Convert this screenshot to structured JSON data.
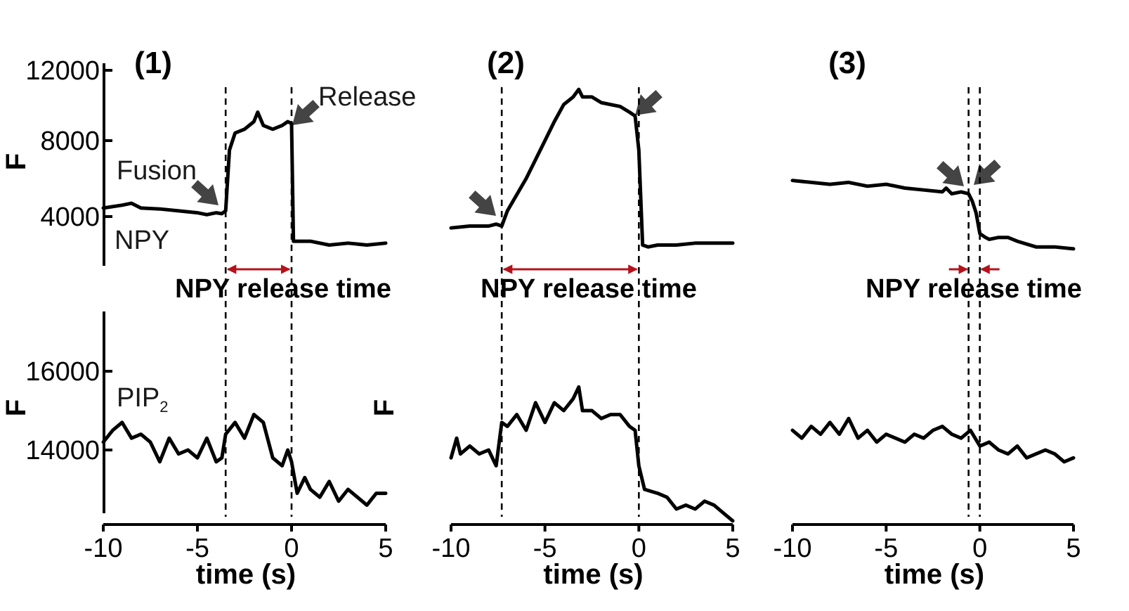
{
  "chart_data": {
    "type": "line",
    "colors": {
      "trace": "#000000",
      "arrow": "#444444",
      "release_marker": "#b5121b"
    },
    "ylabel": "F",
    "xlabel": "time (s)",
    "x_ticks": [
      "-10",
      "-5",
      "0",
      "5"
    ],
    "npy_axis": {
      "ylim": [
        1200,
        12000
      ],
      "ticks": [
        "12000",
        "8000",
        "4000"
      ]
    },
    "pip2_axis": {
      "ylim": [
        11800,
        17600
      ],
      "ticks": [
        "16000",
        "14000"
      ]
    },
    "annotations": {
      "fusion": "Fusion",
      "release": "Release",
      "npy": "NPY",
      "pip2": "PIP",
      "pip2_sub": "2",
      "release_time": "NPY release time"
    },
    "panels": [
      {
        "label": "(1)",
        "xlim": [
          -10,
          5
        ],
        "fusion_time": -3.5,
        "release_time_s": 0,
        "npy": {
          "x": [
            -10,
            -9,
            -8.5,
            -8,
            -7,
            -6,
            -5,
            -4.5,
            -4,
            -3.7,
            -3.5,
            -3.3,
            -3.0,
            -2.5,
            -2.0,
            -1.8,
            -1.5,
            -1.0,
            -0.5,
            -0.2,
            0,
            0.1,
            0.5,
            1,
            2,
            3,
            4,
            5
          ],
          "y": [
            4450,
            4600,
            4700,
            4450,
            4400,
            4300,
            4200,
            4100,
            4200,
            4150,
            4300,
            7500,
            8400,
            8600,
            9000,
            9500,
            8800,
            8600,
            8800,
            9000,
            8900,
            2700,
            2700,
            2700,
            2500,
            2600,
            2500,
            2600
          ]
        },
        "pip2": {
          "x": [
            -10,
            -9.5,
            -9,
            -8.5,
            -8,
            -7.5,
            -7,
            -6.5,
            -6,
            -5.5,
            -5,
            -4.5,
            -4,
            -3.7,
            -3.5,
            -3,
            -2.5,
            -2,
            -1.5,
            -1,
            -0.5,
            -0.2,
            0,
            0.3,
            0.7,
            1,
            1.5,
            2,
            2.5,
            3,
            3.5,
            4,
            4.5,
            5
          ],
          "y": [
            14200,
            14500,
            14700,
            14300,
            14400,
            14200,
            13700,
            14300,
            13900,
            14000,
            13800,
            14300,
            13700,
            13800,
            14400,
            14700,
            14300,
            14900,
            14700,
            13800,
            13600,
            14000,
            13700,
            12900,
            13300,
            13000,
            12800,
            13200,
            12700,
            13000,
            12800,
            12600,
            12900,
            12900
          ]
        }
      },
      {
        "label": "(2)",
        "xlim": [
          -10,
          5
        ],
        "fusion_time": -7.3,
        "release_time_s": 0,
        "npy": {
          "x": [
            -10,
            -9,
            -8,
            -7.6,
            -7.3,
            -7,
            -6,
            -5,
            -4.5,
            -4,
            -3.5,
            -3.2,
            -3,
            -2.5,
            -2,
            -1,
            -0.5,
            -0.2,
            0,
            0.2,
            0.5,
            1,
            2,
            3,
            4,
            5
          ],
          "y": [
            3400,
            3500,
            3500,
            3600,
            3500,
            4300,
            6000,
            8000,
            9000,
            9900,
            10300,
            10700,
            10300,
            10300,
            10000,
            9800,
            9500,
            9300,
            7500,
            2500,
            2400,
            2500,
            2500,
            2600,
            2600,
            2600
          ]
        },
        "pip2": {
          "x": [
            -10,
            -9.7,
            -9.5,
            -9,
            -8.5,
            -8,
            -7.6,
            -7.3,
            -7,
            -6.5,
            -6,
            -5.5,
            -5,
            -4.5,
            -4,
            -3.5,
            -3.2,
            -3,
            -2.5,
            -2,
            -1.5,
            -1,
            -0.5,
            -0.2,
            0,
            0.3,
            1,
            1.5,
            2,
            2.5,
            3,
            3.5,
            4,
            4.5,
            5
          ],
          "y": [
            13800,
            14300,
            13900,
            14100,
            13900,
            14000,
            13600,
            14700,
            14600,
            14900,
            14500,
            15200,
            14700,
            15200,
            15000,
            15300,
            15600,
            15000,
            15000,
            14800,
            14900,
            14900,
            14600,
            14500,
            13600,
            13000,
            12900,
            12800,
            12500,
            12600,
            12500,
            12700,
            12600,
            12400,
            12200
          ]
        }
      },
      {
        "label": "(3)",
        "xlim": [
          -10,
          5
        ],
        "fusion_time": -0.6,
        "release_time_s": 0,
        "npy": {
          "x": [
            -10,
            -9,
            -8,
            -7,
            -6,
            -5,
            -4,
            -3,
            -2,
            -1.8,
            -1.5,
            -1,
            -0.6,
            -0.4,
            -0.2,
            0,
            0.3,
            0.5,
            1,
            1.5,
            2,
            3,
            4,
            5
          ],
          "y": [
            5900,
            5800,
            5700,
            5800,
            5600,
            5700,
            5500,
            5400,
            5300,
            5500,
            5200,
            5300,
            5200,
            4800,
            4200,
            3100,
            2900,
            2800,
            2900,
            2900,
            2700,
            2400,
            2400,
            2300
          ]
        },
        "pip2": {
          "x": [
            -10,
            -9.5,
            -9,
            -8.5,
            -8,
            -7.5,
            -7,
            -6.5,
            -6,
            -5.5,
            -5,
            -4.5,
            -4,
            -3.5,
            -3,
            -2.5,
            -2,
            -1.5,
            -1,
            -0.5,
            0,
            0.5,
            1,
            1.5,
            2,
            2.5,
            3,
            3.5,
            4,
            4.5,
            5
          ],
          "y": [
            14500,
            14300,
            14600,
            14400,
            14700,
            14400,
            14800,
            14300,
            14500,
            14200,
            14400,
            14300,
            14200,
            14400,
            14300,
            14500,
            14600,
            14400,
            14300,
            14500,
            14100,
            14200,
            14000,
            13900,
            14100,
            13800,
            13900,
            14000,
            13900,
            13700,
            13800
          ]
        }
      }
    ]
  }
}
